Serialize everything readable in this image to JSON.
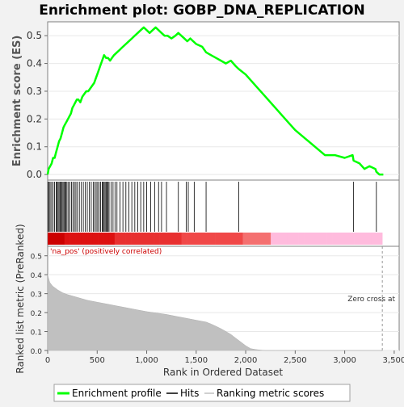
{
  "chart_data": {
    "type": "line",
    "title": "Enrichment plot: GOBP_DNA_REPLICATION",
    "es_panel": {
      "ylabel": "Enrichment score (ES)",
      "ylim": [
        -0.02,
        0.55
      ],
      "yticks": [
        0.0,
        0.1,
        0.2,
        0.3,
        0.4,
        0.5
      ],
      "ytick_labels": [
        "0.0",
        "0.1",
        "0.2",
        "0.3",
        "0.4",
        "0.5"
      ],
      "series": [
        {
          "name": "Enrichment profile",
          "color": "#00ff00",
          "x": [
            0,
            10,
            25,
            40,
            55,
            70,
            85,
            100,
            115,
            130,
            145,
            160,
            175,
            190,
            205,
            220,
            235,
            250,
            265,
            280,
            295,
            310,
            330,
            350,
            370,
            390,
            410,
            430,
            450,
            470,
            490,
            510,
            530,
            550,
            570,
            590,
            610,
            630,
            650,
            670,
            700,
            730,
            760,
            790,
            820,
            850,
            880,
            910,
            940,
            970,
            1000,
            1030,
            1060,
            1090,
            1120,
            1150,
            1180,
            1210,
            1250,
            1290,
            1320,
            1350,
            1380,
            1410,
            1440,
            1470,
            1500,
            1560,
            1600,
            1650,
            1700,
            1750,
            1800,
            1850,
            1900,
            1930,
            2000,
            2100,
            2200,
            2300,
            2400,
            2500,
            2600,
            2700,
            2800,
            2900,
            3000,
            3080,
            3090,
            3150,
            3200,
            3250,
            3310,
            3320,
            3350,
            3390
          ],
          "y": [
            0.0,
            0.02,
            0.03,
            0.04,
            0.06,
            0.06,
            0.08,
            0.1,
            0.12,
            0.13,
            0.15,
            0.17,
            0.18,
            0.19,
            0.2,
            0.21,
            0.22,
            0.24,
            0.25,
            0.26,
            0.27,
            0.27,
            0.26,
            0.28,
            0.29,
            0.3,
            0.3,
            0.31,
            0.32,
            0.33,
            0.35,
            0.37,
            0.39,
            0.41,
            0.43,
            0.42,
            0.42,
            0.41,
            0.42,
            0.43,
            0.44,
            0.45,
            0.46,
            0.47,
            0.48,
            0.49,
            0.5,
            0.51,
            0.52,
            0.53,
            0.52,
            0.51,
            0.52,
            0.53,
            0.52,
            0.51,
            0.5,
            0.5,
            0.49,
            0.5,
            0.51,
            0.5,
            0.49,
            0.48,
            0.49,
            0.48,
            0.47,
            0.46,
            0.44,
            0.43,
            0.42,
            0.41,
            0.4,
            0.41,
            0.39,
            0.38,
            0.36,
            0.32,
            0.28,
            0.24,
            0.2,
            0.16,
            0.13,
            0.1,
            0.07,
            0.07,
            0.06,
            0.07,
            0.05,
            0.04,
            0.02,
            0.03,
            0.02,
            0.01,
            0.0,
            0.0
          ]
        }
      ]
    },
    "hits": {
      "name": "Hits",
      "x": [
        5,
        15,
        25,
        40,
        55,
        70,
        85,
        95,
        105,
        115,
        125,
        135,
        145,
        155,
        165,
        175,
        185,
        195,
        210,
        225,
        240,
        255,
        270,
        285,
        300,
        320,
        340,
        360,
        380,
        400,
        420,
        440,
        460,
        475,
        490,
        505,
        520,
        535,
        550,
        560,
        570,
        580,
        590,
        600,
        610,
        620,
        640,
        660,
        680,
        700,
        730,
        760,
        790,
        820,
        850,
        880,
        910,
        940,
        970,
        1000,
        1040,
        1080,
        1120,
        1150,
        1200,
        1320,
        1400,
        1420,
        1480,
        1600,
        1930,
        3090,
        3320
      ]
    },
    "rank_panel": {
      "ylabel": "Ranked list metric (PreRanked)",
      "xlabel": "Rank in Ordered Dataset",
      "ylim": [
        0.0,
        0.55
      ],
      "yticks": [
        0.0,
        0.1,
        0.2,
        0.3,
        0.4,
        0.5
      ],
      "ytick_labels": [
        "0.0",
        "0.1",
        "0.2",
        "0.3",
        "0.4",
        "0.5"
      ],
      "xlim": [
        0,
        3550
      ],
      "xticks": [
        0,
        500,
        1000,
        1500,
        2000,
        2500,
        3000,
        3500
      ],
      "xtick_labels": [
        "0",
        "500",
        "1,000",
        "1,500",
        "2,000",
        "2,500",
        "3,000",
        "3,500"
      ],
      "zero_cross": 3380,
      "series": [
        {
          "name": "Ranking metric scores",
          "color": "#c0c0c0",
          "x": [
            0,
            20,
            50,
            100,
            150,
            200,
            300,
            400,
            500,
            600,
            700,
            800,
            900,
            1000,
            1100,
            1200,
            1300,
            1400,
            1500,
            1600,
            1650,
            1700,
            1750,
            1800,
            1850,
            1900,
            1950,
            2000,
            2050,
            2100,
            2150,
            2200,
            2300,
            2500,
            3000,
            3380
          ],
          "y": [
            0.4,
            0.36,
            0.34,
            0.32,
            0.305,
            0.295,
            0.28,
            0.265,
            0.255,
            0.245,
            0.235,
            0.225,
            0.215,
            0.205,
            0.198,
            0.19,
            0.18,
            0.17,
            0.16,
            0.15,
            0.14,
            0.128,
            0.115,
            0.1,
            0.085,
            0.065,
            0.045,
            0.025,
            0.01,
            0.005,
            0.002,
            0.0,
            0.0,
            0.0,
            0.0,
            0.0
          ]
        }
      ],
      "annotations": {
        "positive": "'na_pos' (positively correlated)",
        "zero_cross": "Zero cross at"
      }
    },
    "legend": {
      "placement": "bottom",
      "entries": [
        "Enrichment profile",
        "Hits",
        "Ranking metric scores"
      ]
    }
  }
}
